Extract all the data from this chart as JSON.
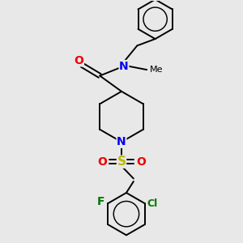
{
  "background_color": "#e8e8e8",
  "bond_color": "#000000",
  "atom_colors": {
    "N": "#0000ee",
    "O": "#ee0000",
    "S": "#bbbb00",
    "F": "#007700",
    "Cl": "#007700",
    "C": "#000000"
  },
  "figsize": [
    3.0,
    3.0
  ],
  "dpi": 100,
  "bond_lw": 1.4,
  "font_size": 9
}
